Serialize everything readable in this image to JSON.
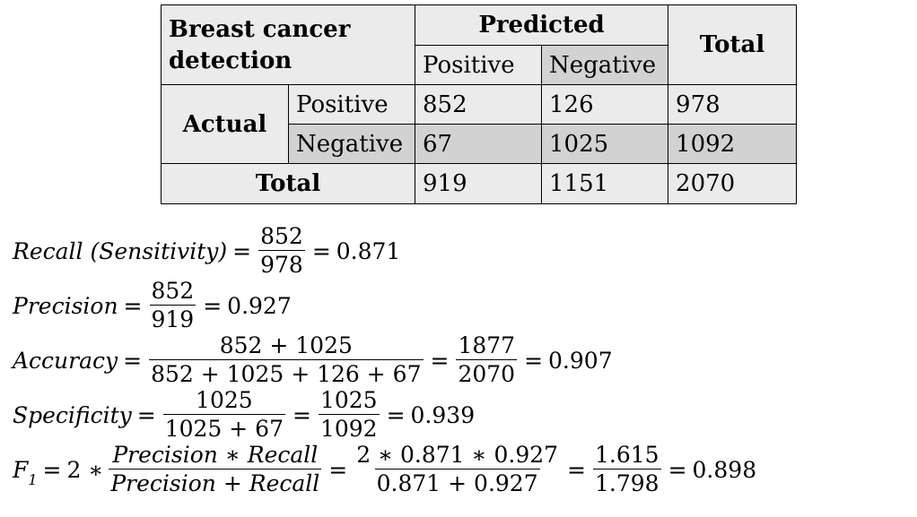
{
  "table": {
    "corner_line1": "Breast cancer",
    "corner_line2": "detection",
    "predicted": "Predicted",
    "total_header": "Total",
    "pred_pos": "Positive",
    "pred_neg": "Negative",
    "actual": "Actual",
    "act_pos": "Positive",
    "act_neg": "Negative",
    "total_row": "Total",
    "r1": [
      "852",
      "126",
      "978"
    ],
    "r2": [
      "67",
      "1025",
      "1092"
    ],
    "r3": [
      "919",
      "1151",
      "2070"
    ]
  },
  "formulas": {
    "recall": {
      "lhs": "Recall (Sensitivity)",
      "num": "852",
      "den": "978",
      "result": "0.871"
    },
    "precision": {
      "lhs": "Precision",
      "num": "852",
      "den": "919",
      "result": "0.927"
    },
    "accuracy": {
      "lhs": "Accuracy",
      "num1": "852 + 1025",
      "den1": "852 + 1025 + 126 + 67",
      "num2": "1877",
      "den2": "2070",
      "result": "0.907"
    },
    "specificity": {
      "lhs": "Specificity",
      "num1": "1025",
      "den1": "1025 + 67",
      "num2": "1025",
      "den2": "1092",
      "result": "0.939"
    },
    "f1": {
      "lhs": "F",
      "lhs_sub": "1",
      "coef": "2 ∗",
      "num1": "Precision ∗ Recall",
      "den1": "Precision + Recall",
      "num2": "2 ∗ 0.871 ∗ 0.927",
      "den2": "0.871 + 0.927",
      "num3": "1.615",
      "den3": "1.798",
      "result": "0.898"
    }
  },
  "symbols": {
    "eq": "="
  }
}
